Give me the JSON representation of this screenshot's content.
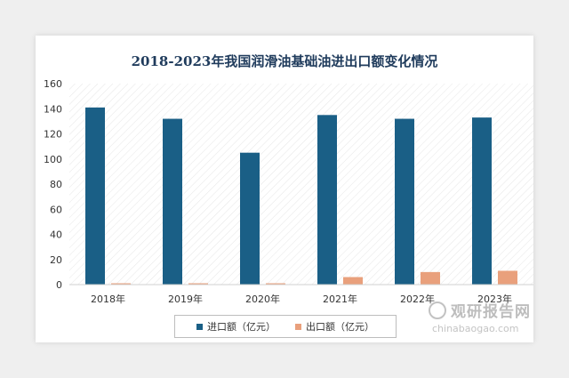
{
  "chart_data": {
    "type": "bar",
    "title": "2018-2023年我国润滑油基础油进出口额变化情况",
    "categories": [
      "2018年",
      "2019年",
      "2020年",
      "2021年",
      "2022年",
      "2023年"
    ],
    "series": [
      {
        "name": "进口额（亿元）",
        "values": [
          141,
          132,
          105,
          135,
          132,
          133
        ],
        "color": "#1a5f86"
      },
      {
        "name": "出口额（亿元）",
        "values": [
          0.8,
          0.8,
          0.6,
          6,
          10,
          11
        ],
        "color": "#e9a07c"
      }
    ],
    "ylim": [
      0,
      160
    ],
    "yticks": [
      0,
      20,
      40,
      60,
      80,
      100,
      120,
      140,
      160
    ],
    "grid": false,
    "legend": "bottom"
  },
  "watermark": {
    "brand": "观研报告网",
    "url": "chinabaogao.com"
  }
}
